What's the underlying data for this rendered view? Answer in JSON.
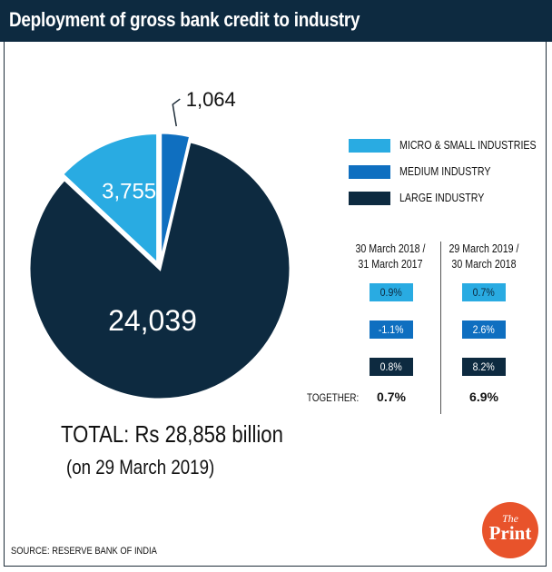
{
  "title": "Deployment of gross bank credit to industry",
  "colors": {
    "micro_small": "#29abe2",
    "medium": "#0f6fc0",
    "large": "#0d2a40",
    "title_bar": "#0d2a40",
    "logo": "#e8532b"
  },
  "chart_data": {
    "type": "pie",
    "unit": "Rs billion",
    "series": [
      {
        "name": "MICRO & SMALL INDUSTRIES",
        "value": 3755,
        "label": "3,755"
      },
      {
        "name": "MEDIUM INDUSTRY",
        "value": 1064,
        "label": "1,064"
      },
      {
        "name": "LARGE INDUSTRY",
        "value": 24039,
        "label": "24,039"
      }
    ],
    "legend_position": "right"
  },
  "legend": {
    "items": [
      {
        "label": "MICRO & SMALL INDUSTRIES",
        "icon": "swatch-light-blue"
      },
      {
        "label": "MEDIUM INDUSTRY",
        "icon": "swatch-blue"
      },
      {
        "label": "LARGE INDUSTRY",
        "icon": "swatch-navy"
      }
    ]
  },
  "growth_table": {
    "columns": [
      {
        "line1": "30 March 2018 /",
        "line2": "31 March 2017"
      },
      {
        "line1": "29 March 2019 /",
        "line2": "30 March 2018"
      }
    ],
    "rows": [
      {
        "values": [
          "0.9%",
          "0.7%"
        ]
      },
      {
        "values": [
          "-1.1%",
          "2.6%"
        ]
      },
      {
        "values": [
          "0.8%",
          "8.2%"
        ]
      }
    ],
    "together_label": "TOGETHER:",
    "together_values": [
      "0.7%",
      "6.9%"
    ]
  },
  "total": {
    "line": "TOTAL: Rs 28,858 billion",
    "sub": "(on 29 March 2019)"
  },
  "source": "SOURCE: RESERVE BANK OF INDIA",
  "logo": {
    "top": "The",
    "bottom": "Print"
  }
}
